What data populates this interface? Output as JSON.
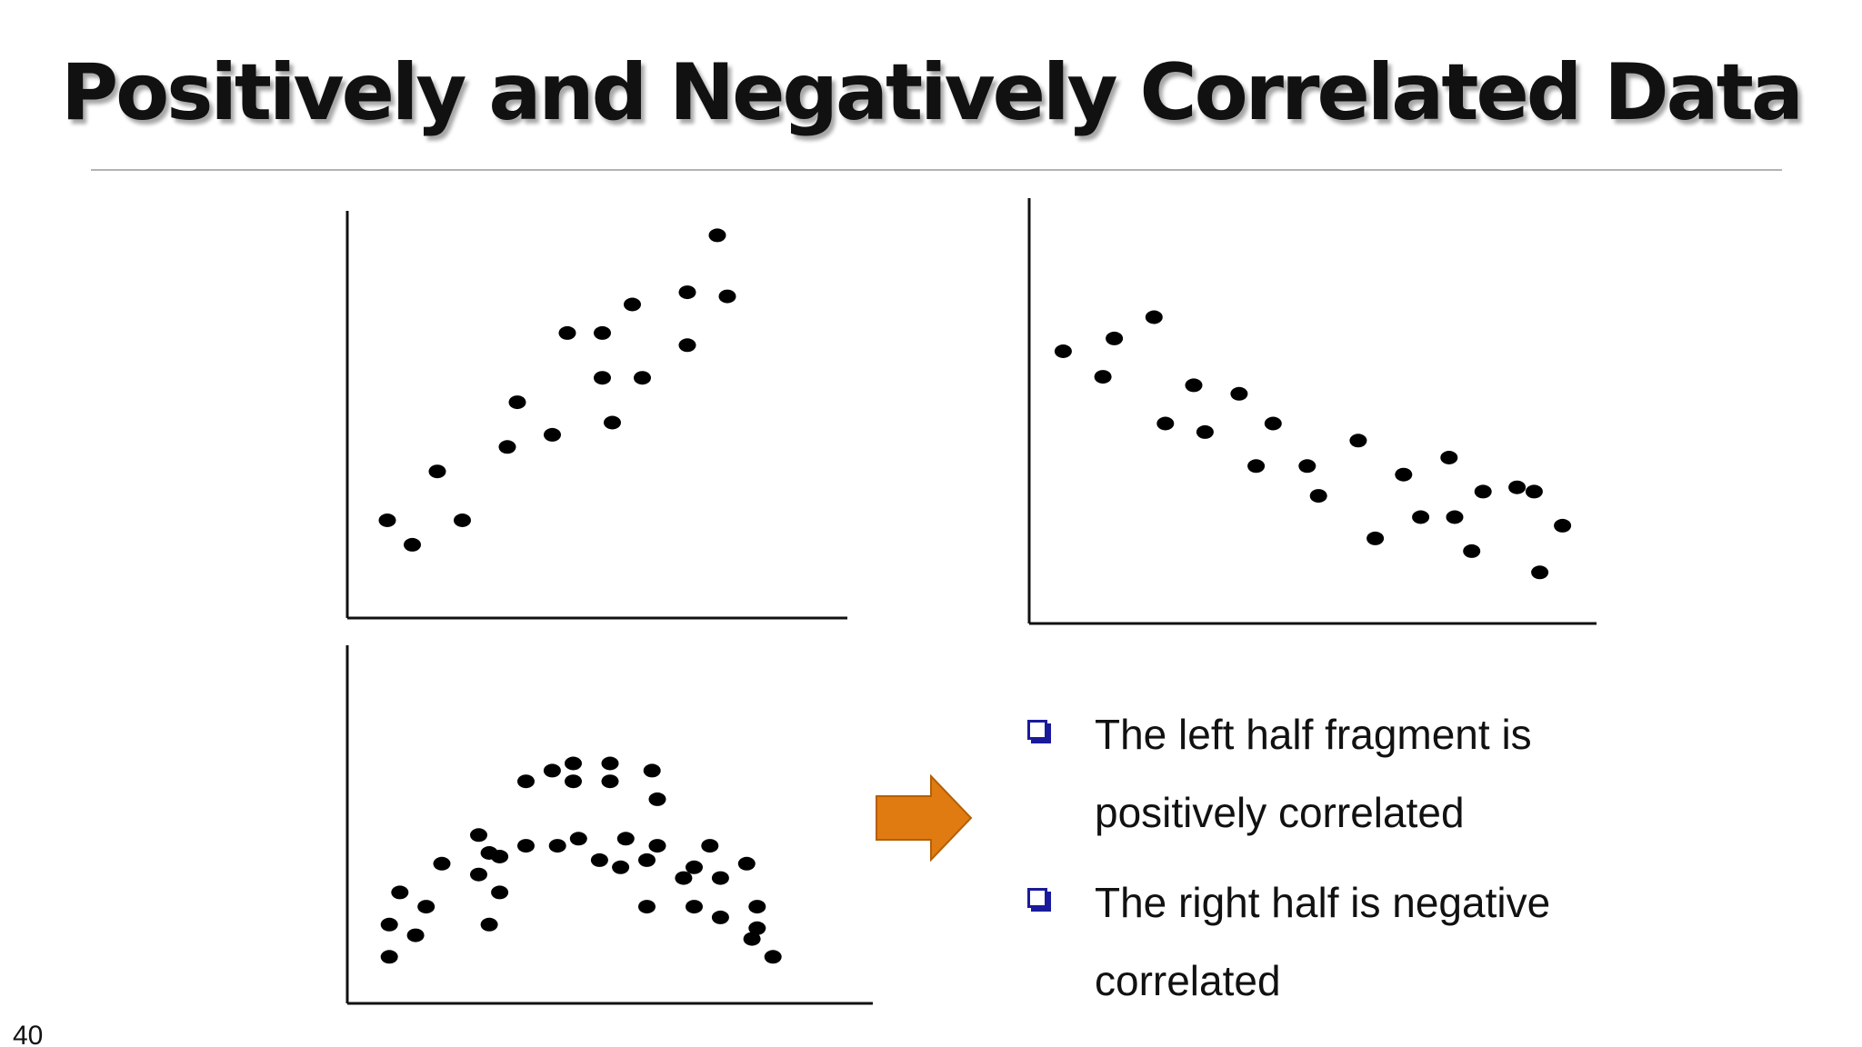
{
  "title": "Positively and Negatively Correlated Data",
  "bullets": [
    {
      "text": "The left half fragment is positively correlated"
    },
    {
      "text": "The right half is negative correlated"
    }
  ],
  "page_number": "40",
  "colors": {
    "points": "#000000",
    "axes": "#111111",
    "arrow_fill": "#e07b12",
    "arrow_stroke": "#b45f06",
    "bullet_marker": "#1a1a9c"
  },
  "icons": {
    "arrow": "right-arrow-icon",
    "bullet": "square-bullet-icon"
  },
  "chart_data": [
    {
      "type": "scatter",
      "title": "",
      "xlabel": "",
      "ylabel": "",
      "xlim": [
        0,
        100
      ],
      "ylim": [
        0,
        100
      ],
      "grid": false,
      "ticks": false,
      "points": [
        [
          8,
          24
        ],
        [
          13,
          18
        ],
        [
          18,
          36
        ],
        [
          23,
          24
        ],
        [
          32,
          42
        ],
        [
          34,
          53
        ],
        [
          41,
          45
        ],
        [
          44,
          70
        ],
        [
          51,
          59
        ],
        [
          51,
          70
        ],
        [
          53,
          48
        ],
        [
          59,
          59
        ],
        [
          57,
          77
        ],
        [
          68,
          67
        ],
        [
          68,
          80
        ],
        [
          74,
          94
        ],
        [
          76,
          79
        ]
      ]
    },
    {
      "type": "scatter",
      "title": "",
      "xlabel": "",
      "ylabel": "",
      "xlim": [
        0,
        100
      ],
      "ylim": [
        0,
        100
      ],
      "grid": false,
      "ticks": false,
      "points": [
        [
          6,
          64
        ],
        [
          13,
          58
        ],
        [
          15,
          67
        ],
        [
          22,
          72
        ],
        [
          24,
          47
        ],
        [
          29,
          56
        ],
        [
          31,
          45
        ],
        [
          37,
          54
        ],
        [
          40,
          37
        ],
        [
          43,
          47
        ],
        [
          49,
          37
        ],
        [
          51,
          30
        ],
        [
          58,
          43
        ],
        [
          61,
          20
        ],
        [
          66,
          35
        ],
        [
          69,
          25
        ],
        [
          74,
          39
        ],
        [
          75,
          25
        ],
        [
          78,
          17
        ],
        [
          80,
          31
        ],
        [
          86,
          32
        ],
        [
          89,
          31
        ],
        [
          90,
          12
        ],
        [
          94,
          23
        ]
      ]
    },
    {
      "type": "scatter",
      "title": "",
      "xlabel": "",
      "ylabel": "",
      "xlim": [
        0,
        100
      ],
      "ylim": [
        0,
        100
      ],
      "grid": false,
      "ticks": false,
      "points": [
        [
          8,
          13
        ],
        [
          8,
          22
        ],
        [
          10,
          31
        ],
        [
          13,
          19
        ],
        [
          15,
          27
        ],
        [
          18,
          39
        ],
        [
          25,
          36
        ],
        [
          25,
          47
        ],
        [
          27,
          42
        ],
        [
          27,
          22
        ],
        [
          29,
          31
        ],
        [
          29,
          41
        ],
        [
          34,
          44
        ],
        [
          34,
          62
        ],
        [
          39,
          65
        ],
        [
          40,
          44
        ],
        [
          43,
          67
        ],
        [
          43,
          62
        ],
        [
          44,
          46
        ],
        [
          48,
          40
        ],
        [
          50,
          67
        ],
        [
          50,
          62
        ],
        [
          52,
          38
        ],
        [
          53,
          46
        ],
        [
          57,
          40
        ],
        [
          57,
          27
        ],
        [
          58,
          65
        ],
        [
          59,
          57
        ],
        [
          59,
          44
        ],
        [
          64,
          35
        ],
        [
          66,
          38
        ],
        [
          66,
          27
        ],
        [
          69,
          44
        ],
        [
          71,
          35
        ],
        [
          71,
          24
        ],
        [
          76,
          39
        ],
        [
          77,
          18
        ],
        [
          78,
          21
        ],
        [
          78,
          27
        ],
        [
          81,
          13
        ]
      ]
    }
  ]
}
